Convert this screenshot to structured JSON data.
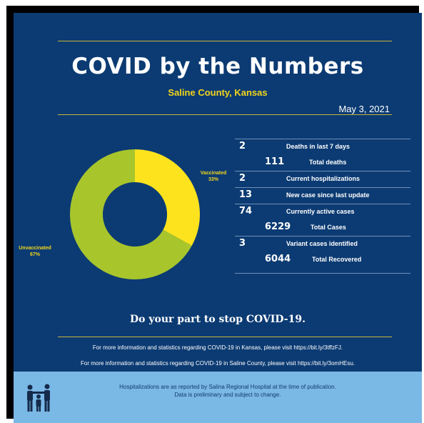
{
  "header": {
    "title": "COVID by the Numbers",
    "subtitle": "Saline County, Kansas",
    "date": "May 3, 2021"
  },
  "chart_data": {
    "type": "pie",
    "style": "donut",
    "slices": [
      {
        "label": "Vaccinated",
        "value": 33,
        "display": "33%",
        "color": "#fde31e"
      },
      {
        "label": "Unvaccinated",
        "value": 67,
        "display": "67%",
        "color": "#a8c52c"
      }
    ]
  },
  "stats": [
    {
      "value": "2",
      "label": "Deaths in last 7 days"
    },
    {
      "value": "111",
      "label": "Total deaths"
    },
    {
      "value": "2",
      "label": "Current hospitalizations"
    },
    {
      "value": "13",
      "label": "New case since last update"
    },
    {
      "value": "74",
      "label": "Currently active cases"
    },
    {
      "value": "6229",
      "label": "Total Cases"
    },
    {
      "value": "3",
      "label": "Variant cases identified"
    },
    {
      "value": "6044",
      "label": "Total Recovered"
    }
  ],
  "cta": "Do your part to stop COVID-19.",
  "info": {
    "kansas": "For more information and statistics regarding COVID-19 in Kansas, please visit https://bit.ly/3tffzFJ.",
    "saline": "For more information and statistics regarding COVID-19 in Saline County, please visit  https://bit.ly/3omHEsu."
  },
  "footer": {
    "line1": "Hospitalizations are as reported by Salina Regional Hospital at the time of publication.",
    "line2": "Data is preliminary and subject to change.",
    "logo_icon": "family-icon"
  }
}
